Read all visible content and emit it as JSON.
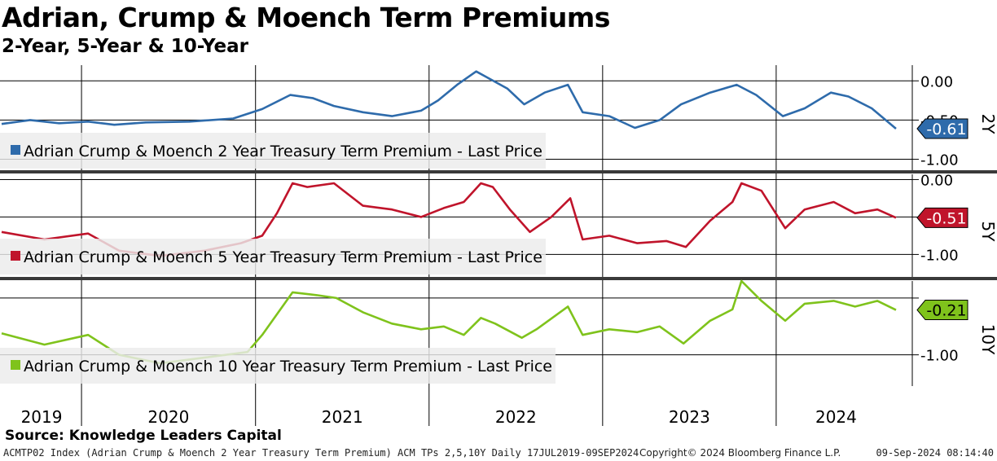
{
  "title": "Adrian, Crump & Moench Term Premiums",
  "subtitle": "2-Year, 5-Year & 10-Year",
  "source": "Source: Knowledge Leaders Capital",
  "footer": {
    "left": "ACMTP02 Index (Adrian Crump & Moench 2 Year Treasury Term Premium) ACM TPs 2,5,10Y  Daily 17JUL2019-09SEP2024",
    "center": "Copyright© 2024 Bloomberg Finance L.P.",
    "right": "09-Sep-2024 08:14:40"
  },
  "chart_data": {
    "type": "line",
    "x_axis_labels": [
      "2019",
      "2020",
      "2021",
      "2022",
      "2023",
      "2024"
    ],
    "x_range": [
      "2019-07-17",
      "2024-09-09"
    ],
    "panels": [
      {
        "tag": "2Y",
        "series_name": "Adrian Crump & Moench 2 Year Treasury Term Premium - Last Price",
        "color": "#2e6bab",
        "last_value_label": "-0.61",
        "last_value": -0.61,
        "ylim": [
          -1.15,
          0.2
        ],
        "yticks": [
          0.0,
          -0.5,
          -1.0
        ],
        "ytick_labels": [
          "0.00",
          "-0.50",
          "-1.00"
        ],
        "points": [
          [
            "2019-07-17",
            -0.55
          ],
          [
            "2019-09-15",
            -0.5
          ],
          [
            "2019-11-15",
            -0.54
          ],
          [
            "2020-01-15",
            -0.52
          ],
          [
            "2020-03-10",
            -0.56
          ],
          [
            "2020-05-15",
            -0.53
          ],
          [
            "2020-08-15",
            -0.52
          ],
          [
            "2020-11-15",
            -0.48
          ],
          [
            "2021-01-15",
            -0.36
          ],
          [
            "2021-03-15",
            -0.18
          ],
          [
            "2021-05-01",
            -0.22
          ],
          [
            "2021-06-15",
            -0.32
          ],
          [
            "2021-08-15",
            -0.4
          ],
          [
            "2021-10-15",
            -0.45
          ],
          [
            "2021-12-15",
            -0.38
          ],
          [
            "2022-01-20",
            -0.25
          ],
          [
            "2022-03-01",
            -0.05
          ],
          [
            "2022-04-10",
            0.12
          ],
          [
            "2022-05-01",
            0.05
          ],
          [
            "2022-06-15",
            -0.1
          ],
          [
            "2022-07-20",
            -0.3
          ],
          [
            "2022-09-01",
            -0.15
          ],
          [
            "2022-10-20",
            -0.05
          ],
          [
            "2022-11-20",
            -0.4
          ],
          [
            "2023-01-15",
            -0.45
          ],
          [
            "2023-03-10",
            -0.6
          ],
          [
            "2023-05-01",
            -0.5
          ],
          [
            "2023-06-15",
            -0.3
          ],
          [
            "2023-08-15",
            -0.15
          ],
          [
            "2023-10-10",
            -0.05
          ],
          [
            "2023-11-20",
            -0.18
          ],
          [
            "2024-01-15",
            -0.45
          ],
          [
            "2024-03-01",
            -0.35
          ],
          [
            "2024-04-25",
            -0.15
          ],
          [
            "2024-06-01",
            -0.2
          ],
          [
            "2024-07-20",
            -0.35
          ],
          [
            "2024-09-09",
            -0.61
          ]
        ]
      },
      {
        "tag": "5Y",
        "series_name": "Adrian Crump & Moench 5 Year Treasury Term Premium - Last Price",
        "color": "#c0142b",
        "last_value_label": "-0.51",
        "last_value": -0.51,
        "ylim": [
          -1.3,
          0.07
        ],
        "yticks": [
          0.0,
          -0.5,
          -1.0
        ],
        "ytick_labels": [
          "0.00",
          "",
          "-1.00"
        ],
        "points": [
          [
            "2019-07-17",
            -0.7
          ],
          [
            "2019-10-15",
            -0.8
          ],
          [
            "2020-01-15",
            -0.72
          ],
          [
            "2020-03-20",
            -0.95
          ],
          [
            "2020-06-15",
            -1.02
          ],
          [
            "2020-09-15",
            -0.95
          ],
          [
            "2020-12-01",
            -0.85
          ],
          [
            "2021-01-15",
            -0.75
          ],
          [
            "2021-02-15",
            -0.45
          ],
          [
            "2021-03-20",
            -0.05
          ],
          [
            "2021-04-20",
            -0.1
          ],
          [
            "2021-06-15",
            -0.05
          ],
          [
            "2021-08-15",
            -0.35
          ],
          [
            "2021-10-15",
            -0.4
          ],
          [
            "2021-12-15",
            -0.5
          ],
          [
            "2022-02-01",
            -0.38
          ],
          [
            "2022-03-15",
            -0.3
          ],
          [
            "2022-04-20",
            -0.05
          ],
          [
            "2022-05-15",
            -0.1
          ],
          [
            "2022-06-20",
            -0.4
          ],
          [
            "2022-08-01",
            -0.7
          ],
          [
            "2022-09-15",
            -0.5
          ],
          [
            "2022-10-25",
            -0.25
          ],
          [
            "2022-11-20",
            -0.8
          ],
          [
            "2023-01-15",
            -0.75
          ],
          [
            "2023-03-15",
            -0.85
          ],
          [
            "2023-05-15",
            -0.82
          ],
          [
            "2023-06-25",
            -0.9
          ],
          [
            "2023-08-15",
            -0.55
          ],
          [
            "2023-10-01",
            -0.3
          ],
          [
            "2023-10-20",
            -0.05
          ],
          [
            "2023-12-01",
            -0.15
          ],
          [
            "2024-01-20",
            -0.65
          ],
          [
            "2024-03-01",
            -0.4
          ],
          [
            "2024-05-01",
            -0.3
          ],
          [
            "2024-06-15",
            -0.45
          ],
          [
            "2024-08-01",
            -0.4
          ],
          [
            "2024-09-09",
            -0.51
          ]
        ]
      },
      {
        "tag": "10Y",
        "series_name": "Adrian Crump & Moench 10 Year Treasury Term Premium - Last Price",
        "color": "#7fc31c",
        "last_value_label": "-0.21",
        "last_value": -0.21,
        "ylim": [
          -1.55,
          0.3
        ],
        "yticks": [
          0.0,
          -1.0
        ],
        "ytick_labels": [
          "",
          "-1.00"
        ],
        "points": [
          [
            "2019-07-17",
            -0.62
          ],
          [
            "2019-10-15",
            -0.82
          ],
          [
            "2020-01-15",
            -0.65
          ],
          [
            "2020-03-20",
            -1.0
          ],
          [
            "2020-06-15",
            -1.15
          ],
          [
            "2020-09-15",
            -1.05
          ],
          [
            "2020-12-15",
            -0.95
          ],
          [
            "2021-01-15",
            -0.65
          ],
          [
            "2021-03-20",
            0.1
          ],
          [
            "2021-05-10",
            0.05
          ],
          [
            "2021-06-20",
            0.0
          ],
          [
            "2021-08-15",
            -0.25
          ],
          [
            "2021-10-15",
            -0.45
          ],
          [
            "2021-12-15",
            -0.55
          ],
          [
            "2022-02-01",
            -0.5
          ],
          [
            "2022-03-15",
            -0.65
          ],
          [
            "2022-04-20",
            -0.35
          ],
          [
            "2022-05-20",
            -0.45
          ],
          [
            "2022-07-15",
            -0.7
          ],
          [
            "2022-08-15",
            -0.55
          ],
          [
            "2022-10-20",
            -0.15
          ],
          [
            "2022-11-20",
            -0.65
          ],
          [
            "2023-01-15",
            -0.55
          ],
          [
            "2023-03-15",
            -0.6
          ],
          [
            "2023-05-01",
            -0.5
          ],
          [
            "2023-06-20",
            -0.8
          ],
          [
            "2023-08-15",
            -0.4
          ],
          [
            "2023-10-01",
            -0.2
          ],
          [
            "2023-10-20",
            0.3
          ],
          [
            "2023-12-01",
            -0.05
          ],
          [
            "2024-01-20",
            -0.4
          ],
          [
            "2024-03-01",
            -0.1
          ],
          [
            "2024-05-01",
            -0.05
          ],
          [
            "2024-06-15",
            -0.15
          ],
          [
            "2024-08-01",
            -0.05
          ],
          [
            "2024-09-09",
            -0.21
          ]
        ]
      }
    ]
  }
}
